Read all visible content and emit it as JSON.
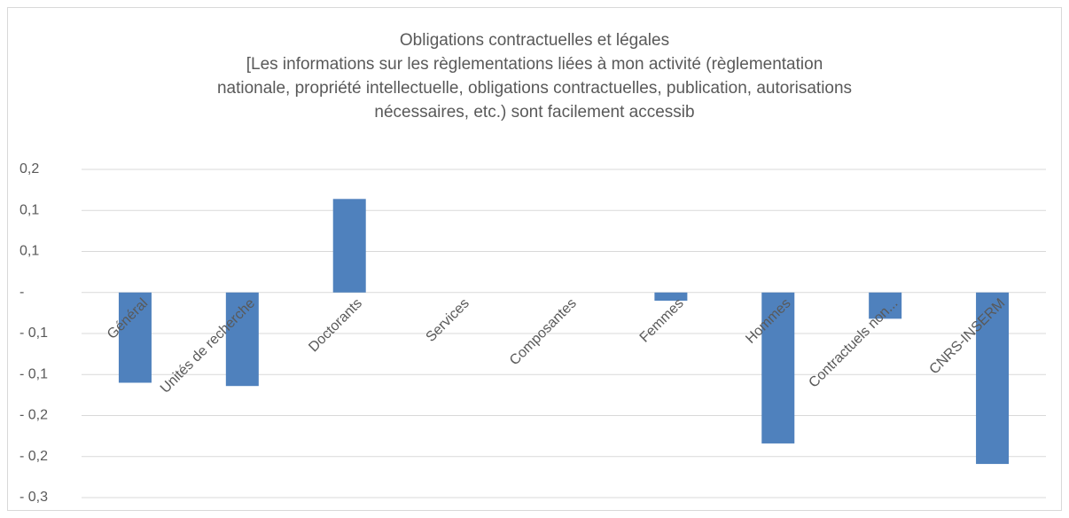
{
  "chart_data": {
    "type": "bar",
    "title": [
      "Obligations contractuelles et légales",
      "[Les informations sur les règlementations liées à mon activité (règlementation",
      "nationale, propriété intellectuelle, obligations contractuelles, publication, autorisations",
      "nécessaires, etc.) sont facilement accessib"
    ],
    "categories": [
      "Général",
      "Unités de recherche",
      "Doctorants",
      "Services",
      "Composantes",
      "Femmes",
      "Hommes",
      "Contractuels non...",
      "CNRS-INSERM"
    ],
    "values": [
      -0.11,
      -0.114,
      0.114,
      0,
      0,
      -0.01,
      -0.184,
      -0.032,
      -0.209
    ],
    "color": "#4f81bd",
    "ylim": [
      -0.25,
      0.15
    ],
    "yticks": [
      {
        "value": 0.15,
        "label": "0,2"
      },
      {
        "value": 0.1,
        "label": "0,1"
      },
      {
        "value": 0.05,
        "label": "0,1"
      },
      {
        "value": 0,
        "label": "-"
      },
      {
        "value": -0.05,
        "label": "- 0,1"
      },
      {
        "value": -0.1,
        "label": "- 0,1"
      },
      {
        "value": -0.15,
        "label": "- 0,2"
      },
      {
        "value": -0.2,
        "label": "- 0,2"
      },
      {
        "value": -0.25,
        "label": "- 0,3"
      }
    ],
    "grid": true
  }
}
